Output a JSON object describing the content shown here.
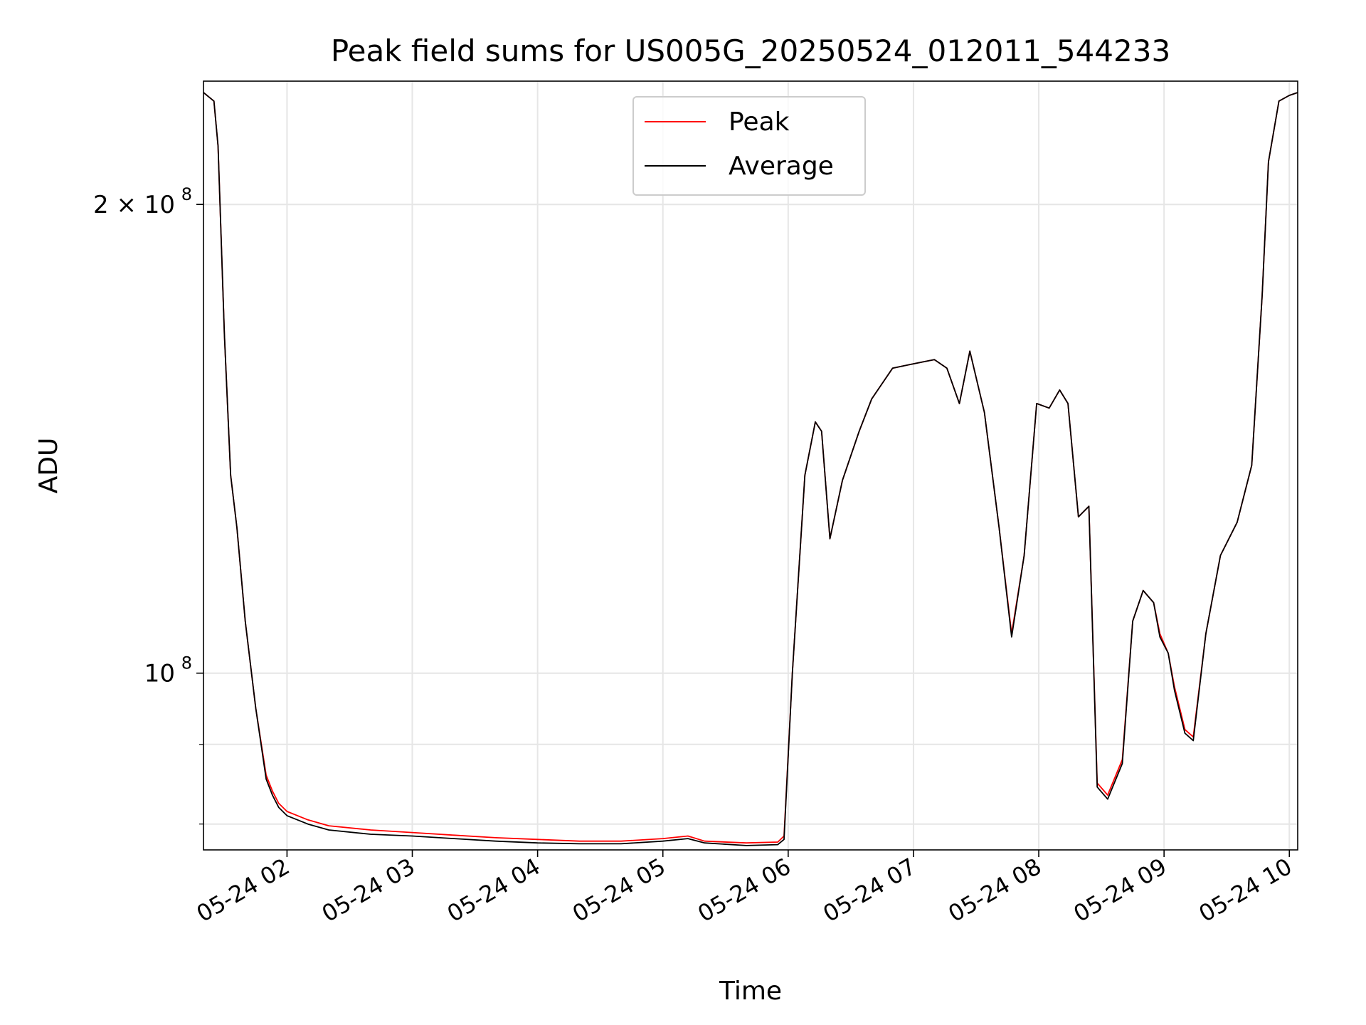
{
  "chart_data": {
    "type": "line",
    "title": "Peak field sums for US005G_20250524_012011_544233",
    "xlabel": "Time",
    "ylabel": "ADU",
    "yscale": "log",
    "ylim": [
      77000000,
      240000000
    ],
    "xlim": [
      "05-24 01:20",
      "05-24 10:04"
    ],
    "grid": true,
    "legend": "upper center",
    "x_ticks": [
      "05-24 02",
      "05-24 03",
      "05-24 04",
      "05-24 05",
      "05-24 06",
      "05-24 07",
      "05-24 08",
      "05-24 09",
      "05-24 10"
    ],
    "y_ticks": [
      {
        "value": 100000000,
        "label": "10",
        "exp": "8"
      },
      {
        "value": 200000000,
        "label": "2 × 10",
        "exp": "8"
      }
    ],
    "colors": {
      "Peak": "#ff0000",
      "Average": "#000000"
    },
    "x": [
      "05-24 01:20",
      "05-24 01:25",
      "05-24 01:27",
      "05-24 01:30",
      "05-24 01:33",
      "05-24 01:36",
      "05-24 01:40",
      "05-24 01:45",
      "05-24 01:50",
      "05-24 01:53",
      "05-24 01:56",
      "05-24 02:00",
      "05-24 02:10",
      "05-24 02:20",
      "05-24 02:40",
      "05-24 03:00",
      "05-24 03:20",
      "05-24 03:40",
      "05-24 04:00",
      "05-24 04:20",
      "05-24 04:40",
      "05-24 05:00",
      "05-24 05:12",
      "05-24 05:20",
      "05-24 05:40",
      "05-24 05:55",
      "05-24 05:58",
      "05-24 06:02",
      "05-24 06:08",
      "05-24 06:13",
      "05-24 06:16",
      "05-24 06:20",
      "05-24 06:26",
      "05-24 06:34",
      "05-24 06:40",
      "05-24 06:50",
      "05-24 07:00",
      "05-24 07:10",
      "05-24 07:16",
      "05-24 07:22",
      "05-24 07:27",
      "05-24 07:34",
      "05-24 07:41",
      "05-24 07:47",
      "05-24 07:53",
      "05-24 07:59",
      "05-24 08:05",
      "05-24 08:10",
      "05-24 08:14",
      "05-24 08:19",
      "05-24 08:24",
      "05-24 08:28",
      "05-24 08:33",
      "05-24 08:40",
      "05-24 08:45",
      "05-24 08:50",
      "05-24 08:55",
      "05-24 08:58",
      "05-24 09:02",
      "05-24 09:05",
      "05-24 09:10",
      "05-24 09:14",
      "05-24 09:20",
      "05-24 09:27",
      "05-24 09:35",
      "05-24 09:42",
      "05-24 09:47",
      "05-24 09:50",
      "05-24 09:55",
      "05-24 10:00",
      "05-24 10:04"
    ],
    "series": [
      {
        "name": "Peak",
        "values": [
          236000000,
          233000000,
          218000000,
          165000000,
          134000000,
          124000000,
          108000000,
          95000000,
          86000000,
          84000000,
          82500000,
          81500000,
          80500000,
          79800000,
          79300000,
          79000000,
          78700000,
          78400000,
          78200000,
          78000000,
          78000000,
          78300000,
          78600000,
          78000000,
          77800000,
          77900000,
          78600000,
          100000000,
          134000000,
          145000000,
          143000000,
          122000000,
          133000000,
          143000000,
          150000000,
          157000000,
          158000000,
          159000000,
          157000000,
          149000000,
          161000000,
          147000000,
          124000000,
          106000000,
          119000000,
          149000000,
          148000000,
          152000000,
          149000000,
          126000000,
          128000000,
          85000000,
          83500000,
          88000000,
          108000000,
          113000000,
          111000000,
          106000000,
          103000000,
          98000000,
          92000000,
          91000000,
          106000000,
          119000000,
          125000000,
          136000000,
          175000000,
          213000000,
          233000000,
          235000000,
          236000000
        ]
      },
      {
        "name": "Average",
        "values": [
          236000000,
          233000000,
          218000000,
          165000000,
          134000000,
          124000000,
          108000000,
          95000000,
          85500000,
          83500000,
          82000000,
          81000000,
          80000000,
          79300000,
          78800000,
          78600000,
          78300000,
          78000000,
          77800000,
          77700000,
          77700000,
          78000000,
          78300000,
          77800000,
          77500000,
          77600000,
          78200000,
          100000000,
          134000000,
          145000000,
          143000000,
          122000000,
          133000000,
          143000000,
          150000000,
          157000000,
          158000000,
          159000000,
          157000000,
          149000000,
          161000000,
          147000000,
          124000000,
          105500000,
          119000000,
          149000000,
          148000000,
          152000000,
          149000000,
          126000000,
          128000000,
          84500000,
          83000000,
          87500000,
          108000000,
          113000000,
          111000000,
          105500000,
          103000000,
          97500000,
          91500000,
          90500000,
          106000000,
          119000000,
          125000000,
          136000000,
          175000000,
          213000000,
          233000000,
          235000000,
          236000000
        ]
      }
    ]
  }
}
